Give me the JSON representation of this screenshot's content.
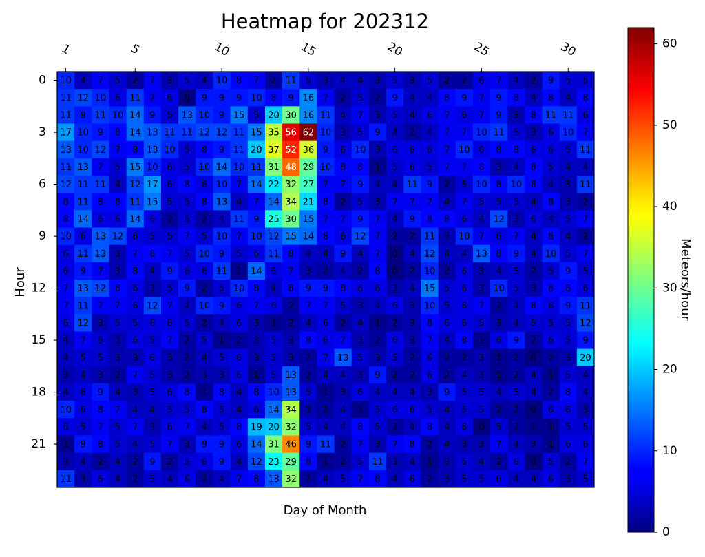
{
  "chart_data": {
    "type": "heatmap",
    "title": "Heatmap for 202312",
    "x_label": "Day of Month",
    "y_label": "Hour",
    "colorbar_label": "Meteors/hour",
    "colormap": "jet",
    "x": [
      1,
      2,
      3,
      4,
      5,
      6,
      7,
      8,
      9,
      10,
      11,
      12,
      13,
      14,
      15,
      16,
      17,
      18,
      19,
      20,
      21,
      22,
      23,
      24,
      25,
      26,
      27,
      28,
      29,
      30,
      31
    ],
    "y": [
      0,
      1,
      2,
      3,
      4,
      5,
      6,
      7,
      8,
      9,
      10,
      11,
      12,
      13,
      14,
      15,
      16,
      17,
      18,
      19,
      20,
      21,
      22,
      23
    ],
    "xticks": [
      1,
      5,
      10,
      15,
      20,
      25,
      30
    ],
    "yticks": [
      0,
      3,
      6,
      9,
      12,
      15,
      18,
      21
    ],
    "clim": [
      0,
      62
    ],
    "cticks": [
      0,
      10,
      20,
      30,
      40,
      50,
      60
    ],
    "z": [
      [
        10,
        4,
        7,
        5,
        2,
        7,
        3,
        5,
        4,
        10,
        8,
        7,
        2,
        11,
        5,
        3,
        4,
        4,
        3,
        5,
        3,
        5,
        2,
        2,
        6,
        7,
        4,
        2,
        9,
        5,
        5
      ],
      [
        11,
        12,
        10,
        6,
        11,
        7,
        6,
        0,
        9,
        9,
        9,
        10,
        8,
        9,
        16,
        7,
        2,
        5,
        2,
        9,
        4,
        4,
        8,
        9,
        7,
        9,
        8,
        4,
        8,
        4,
        8
      ],
      [
        11,
        9,
        11,
        10,
        14,
        9,
        5,
        13,
        10,
        9,
        15,
        5,
        20,
        30,
        16,
        11,
        4,
        7,
        3,
        5,
        4,
        6,
        7,
        6,
        7,
        9,
        3,
        8,
        11,
        11,
        6
      ],
      [
        17,
        10,
        9,
        8,
        14,
        13,
        11,
        11,
        12,
        12,
        11,
        15,
        35,
        56,
        62,
        10,
        3,
        5,
        9,
        4,
        2,
        4,
        7,
        7,
        10,
        11,
        5,
        3,
        6,
        10,
        7
      ],
      [
        13,
        10,
        12,
        7,
        8,
        13,
        10,
        5,
        8,
        9,
        11,
        20,
        37,
        52,
        36,
        9,
        6,
        10,
        3,
        6,
        6,
        6,
        7,
        10,
        6,
        8,
        8,
        6,
        6,
        5,
        11
      ],
      [
        11,
        13,
        7,
        5,
        15,
        10,
        6,
        5,
        10,
        14,
        10,
        11,
        31,
        48,
        29,
        10,
        8,
        8,
        1,
        5,
        6,
        5,
        7,
        7,
        8,
        3,
        4,
        8,
        5,
        4,
        4
      ],
      [
        12,
        11,
        11,
        4,
        12,
        17,
        6,
        8,
        6,
        10,
        7,
        14,
        22,
        32,
        27,
        7,
        7,
        9,
        4,
        4,
        11,
        9,
        2,
        5,
        10,
        8,
        10,
        8,
        4,
        3,
        11
      ],
      [
        8,
        11,
        8,
        8,
        11,
        15,
        5,
        5,
        8,
        13,
        4,
        7,
        14,
        34,
        21,
        8,
        2,
        5,
        3,
        7,
        7,
        7,
        4,
        7,
        5,
        5,
        5,
        4,
        8,
        3,
        2
      ],
      [
        8,
        14,
        6,
        6,
        14,
        6,
        2,
        5,
        2,
        4,
        11,
        9,
        25,
        30,
        15,
        7,
        7,
        9,
        7,
        4,
        9,
        8,
        8,
        6,
        4,
        12,
        3,
        6,
        4,
        5,
        7
      ],
      [
        10,
        6,
        13,
        12,
        6,
        5,
        5,
        7,
        5,
        10,
        7,
        10,
        12,
        15,
        14,
        8,
        6,
        12,
        7,
        2,
        2,
        11,
        3,
        10,
        7,
        6,
        7,
        4,
        8,
        4,
        2
      ],
      [
        6,
        11,
        13,
        3,
        7,
        8,
        7,
        5,
        10,
        9,
        5,
        6,
        11,
        8,
        4,
        4,
        9,
        4,
        7,
        0,
        4,
        12,
        4,
        4,
        13,
        8,
        9,
        4,
        10,
        5,
        7
      ],
      [
        6,
        9,
        7,
        3,
        8,
        4,
        9,
        6,
        6,
        11,
        1,
        14,
        6,
        7,
        3,
        2,
        4,
        2,
        8,
        0,
        2,
        10,
        2,
        6,
        3,
        4,
        5,
        2,
        5,
        9,
        5
      ],
      [
        7,
        13,
        12,
        8,
        6,
        3,
        5,
        9,
        2,
        5,
        10,
        8,
        4,
        8,
        9,
        9,
        8,
        6,
        6,
        3,
        4,
        15,
        5,
        6,
        3,
        10,
        5,
        3,
        8,
        8,
        6
      ],
      [
        7,
        11,
        7,
        7,
        6,
        12,
        7,
        4,
        10,
        9,
        6,
        7,
        6,
        2,
        7,
        7,
        5,
        3,
        4,
        6,
        3,
        10,
        5,
        6,
        7,
        2,
        4,
        8,
        6,
        9,
        11
      ],
      [
        6,
        12,
        3,
        5,
        5,
        6,
        6,
        5,
        2,
        4,
        6,
        3,
        1,
        2,
        4,
        6,
        2,
        4,
        1,
        2,
        3,
        8,
        6,
        6,
        5,
        3,
        4,
        5,
        5,
        5,
        12
      ],
      [
        4,
        7,
        5,
        3,
        6,
        5,
        7,
        2,
        5,
        1,
        2,
        3,
        5,
        3,
        8,
        6,
        7,
        3,
        2,
        6,
        3,
        7,
        4,
        8,
        1,
        6,
        9,
        2,
        6,
        5,
        9
      ],
      [
        4,
        5,
        5,
        3,
        3,
        6,
        3,
        2,
        4,
        5,
        6,
        3,
        5,
        3,
        2,
        7,
        13,
        5,
        3,
        5,
        2,
        6,
        2,
        2,
        3,
        1,
        2,
        0,
        2,
        3,
        20
      ],
      [
        3,
        4,
        3,
        2,
        7,
        5,
        3,
        2,
        3,
        3,
        6,
        1,
        5,
        13,
        2,
        4,
        4,
        3,
        9,
        2,
        2,
        6,
        2,
        4,
        3,
        1,
        2,
        4,
        1,
        5,
        4
      ],
      [
        4,
        6,
        9,
        4,
        3,
        5,
        6,
        8,
        1,
        8,
        4,
        8,
        10,
        13,
        5,
        1,
        3,
        6,
        4,
        4,
        4,
        3,
        9,
        5,
        5,
        4,
        5,
        4,
        2,
        8,
        4
      ],
      [
        10,
        6,
        8,
        7,
        4,
        4,
        5,
        5,
        8,
        5,
        4,
        6,
        14,
        34,
        3,
        2,
        4,
        1,
        5,
        6,
        6,
        5,
        4,
        5,
        5,
        2,
        2,
        0,
        6,
        6,
        3
      ],
      [
        6,
        5,
        7,
        5,
        7,
        3,
        6,
        7,
        4,
        5,
        8,
        19,
        20,
        32,
        5,
        4,
        4,
        8,
        5,
        2,
        4,
        8,
        4,
        6,
        0,
        5,
        2,
        1,
        1,
        5,
        5
      ],
      [
        1,
        9,
        8,
        5,
        4,
        5,
        7,
        3,
        9,
        9,
        6,
        14,
        31,
        46,
        9,
        11,
        2,
        7,
        3,
        7,
        8,
        2,
        4,
        3,
        3,
        7,
        4,
        3,
        1,
        6,
        6
      ],
      [
        3,
        4,
        2,
        4,
        2,
        9,
        2,
        5,
        6,
        9,
        4,
        12,
        23,
        29,
        8,
        1,
        2,
        5,
        11,
        3,
        4,
        1,
        3,
        5,
        4,
        2,
        6,
        0,
        5,
        2,
        7
      ],
      [
        11,
        3,
        6,
        4,
        2,
        5,
        4,
        6,
        2,
        4,
        7,
        8,
        13,
        32,
        2,
        4,
        5,
        7,
        8,
        4,
        6,
        2,
        3,
        5,
        5,
        6,
        4,
        4,
        6,
        3,
        5
      ]
    ]
  }
}
